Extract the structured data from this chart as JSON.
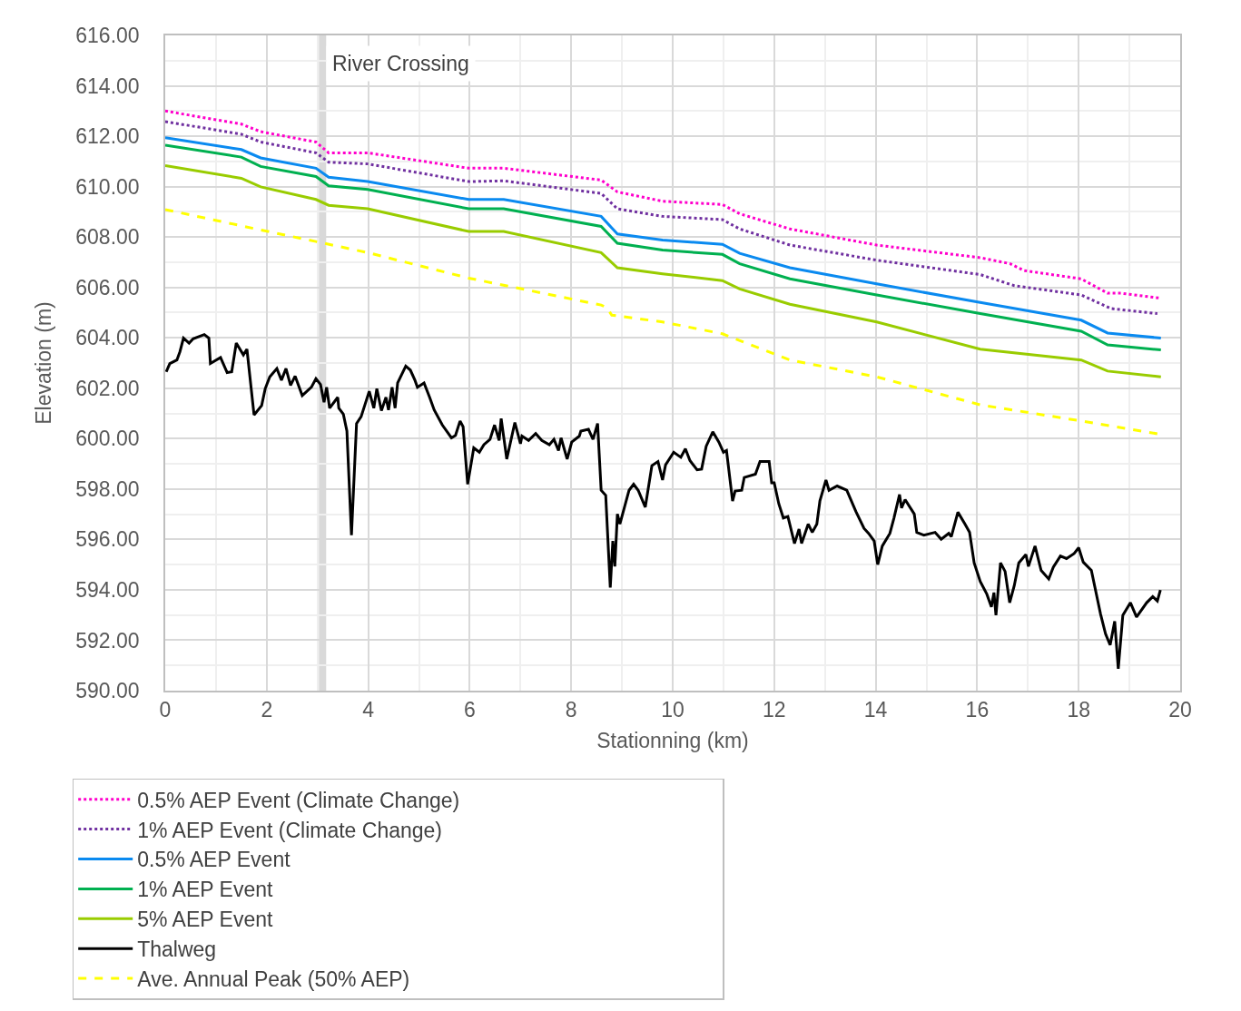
{
  "chart_data": {
    "type": "line",
    "xlabel": "Stationning (km)",
    "ylabel": "Elevation (m)",
    "xlim": [
      0,
      20
    ],
    "xticks": [
      0,
      2,
      4,
      6,
      8,
      10,
      12,
      14,
      16,
      18,
      20
    ],
    "ylim": [
      590,
      616
    ],
    "yticks": [
      {
        "value": 590,
        "label": "590.00"
      },
      {
        "value": 592,
        "label": "592.00"
      },
      {
        "value": 594,
        "label": "594.00"
      },
      {
        "value": 596,
        "label": "596.00"
      },
      {
        "value": 598,
        "label": "598.00"
      },
      {
        "value": 600,
        "label": "600.00"
      },
      {
        "value": 602,
        "label": "602.00"
      },
      {
        "value": 604,
        "label": "604.00"
      },
      {
        "value": 606,
        "label": "606.00"
      },
      {
        "value": 608,
        "label": "608.00"
      },
      {
        "value": 610,
        "label": "610.00"
      },
      {
        "value": 612,
        "label": "612.00"
      },
      {
        "value": 614,
        "label": "614.00"
      },
      {
        "value": 616,
        "label": "616.00"
      }
    ],
    "grid": true,
    "legend": "bottom",
    "ref_lines": [
      {
        "axis": "x",
        "value": 3.1,
        "label": "River Crossing",
        "color": "#d9d9d9"
      }
    ],
    "series": [
      {
        "name": "0.5% AEP Event (Climate Change)",
        "color": "#ff00cc",
        "line_style": "dotted",
        "x": [
          0,
          1.5,
          1.88,
          2.97,
          3.22,
          3.99,
          5.98,
          6.67,
          8.59,
          8.91,
          9.8,
          10.98,
          11.32,
          12.31,
          14.02,
          16.06,
          16.65,
          16.92,
          18.05,
          18.57,
          18.84,
          19.62
        ],
        "values": [
          613.0,
          612.48,
          612.18,
          611.77,
          611.34,
          611.34,
          610.73,
          610.73,
          610.26,
          609.79,
          609.42,
          609.29,
          608.92,
          608.32,
          607.68,
          607.18,
          606.94,
          606.67,
          606.34,
          605.77,
          605.77,
          605.57
        ]
      },
      {
        "name": "1% AEP Event (Climate Change)",
        "color": "#7030a0",
        "line_style": "dotted",
        "x": [
          0,
          1.5,
          1.88,
          2.97,
          3.22,
          3.99,
          5.98,
          6.67,
          8.59,
          8.91,
          9.8,
          10.98,
          11.32,
          12.31,
          14.02,
          16.06,
          16.73,
          18.05,
          18.64,
          19.55
        ],
        "values": [
          612.58,
          612.08,
          611.77,
          611.34,
          610.97,
          610.9,
          610.2,
          610.23,
          609.73,
          609.12,
          608.82,
          608.69,
          608.32,
          607.68,
          607.08,
          606.51,
          606.07,
          605.7,
          605.16,
          604.96
        ]
      },
      {
        "name": "0.5% AEP Event",
        "color": "#0a8af0",
        "line_style": "solid",
        "x": [
          0,
          1.5,
          1.88,
          2.97,
          3.22,
          3.99,
          5.98,
          6.67,
          8.59,
          8.91,
          9.8,
          10.98,
          11.32,
          12.31,
          14.02,
          16.06,
          18.05,
          18.57,
          19.62
        ],
        "values": [
          611.94,
          611.47,
          611.14,
          610.73,
          610.37,
          610.2,
          609.49,
          609.49,
          608.82,
          608.12,
          607.88,
          607.71,
          607.35,
          606.78,
          606.14,
          605.4,
          604.7,
          604.19,
          603.99
        ]
      },
      {
        "name": "1% AEP Event",
        "color": "#00b050",
        "line_style": "solid",
        "x": [
          0,
          1.5,
          1.88,
          2.97,
          3.22,
          3.99,
          5.98,
          6.67,
          8.59,
          8.91,
          9.8,
          10.98,
          11.32,
          12.31,
          14.02,
          16.06,
          18.05,
          18.57,
          19.62
        ],
        "values": [
          611.64,
          611.17,
          610.8,
          610.4,
          610.03,
          609.89,
          609.12,
          609.12,
          608.42,
          607.75,
          607.48,
          607.31,
          606.94,
          606.34,
          605.7,
          604.96,
          604.26,
          603.72,
          603.52
        ]
      },
      {
        "name": "5% AEP Event",
        "color": "#99cc00",
        "line_style": "solid",
        "x": [
          0,
          1.5,
          1.88,
          2.97,
          3.22,
          3.99,
          5.98,
          6.67,
          8.59,
          8.91,
          9.8,
          10.98,
          11.32,
          12.31,
          14.02,
          16.06,
          18.05,
          18.57,
          19.62
        ],
        "values": [
          610.83,
          610.33,
          609.99,
          609.49,
          609.26,
          609.12,
          608.22,
          608.22,
          607.38,
          606.78,
          606.54,
          606.27,
          605.94,
          605.33,
          604.63,
          603.55,
          603.12,
          602.68,
          602.45
        ]
      },
      {
        "name": "Thalweg",
        "color": "#000000",
        "line_style": "solid",
        "x": [
          0.02,
          0.09,
          0.23,
          0.29,
          0.36,
          0.47,
          0.55,
          0.77,
          0.86,
          0.89,
          1.09,
          1.22,
          1.31,
          1.4,
          1.54,
          1.61,
          1.75,
          1.9,
          1.97,
          2.06,
          2.2,
          2.29,
          2.38,
          2.47,
          2.56,
          2.7,
          2.88,
          2.97,
          3.06,
          3.13,
          3.18,
          3.24,
          3.4,
          3.42,
          3.51,
          3.58,
          3.67,
          3.77,
          3.86,
          4.02,
          4.11,
          4.17,
          4.26,
          4.35,
          4.4,
          4.47,
          4.53,
          4.58,
          4.74,
          4.83,
          4.92,
          4.97,
          5.1,
          5.21,
          5.3,
          5.46,
          5.64,
          5.72,
          5.81,
          5.87,
          5.96,
          6.08,
          6.19,
          6.28,
          6.4,
          6.49,
          6.58,
          6.62,
          6.73,
          6.89,
          7.0,
          7.03,
          7.16,
          7.3,
          7.42,
          7.57,
          7.66,
          7.75,
          7.8,
          7.92,
          8.01,
          8.16,
          8.19,
          8.34,
          8.43,
          8.52,
          8.59,
          8.68,
          8.77,
          8.82,
          8.86,
          8.91,
          8.96,
          9.14,
          9.23,
          9.32,
          9.46,
          9.59,
          9.71,
          9.8,
          9.86,
          10.02,
          10.16,
          10.25,
          10.34,
          10.48,
          10.57,
          10.66,
          10.79,
          10.91,
          11.0,
          11.06,
          11.18,
          11.23,
          11.36,
          11.41,
          11.63,
          11.72,
          11.9,
          11.95,
          12.0,
          12.09,
          12.18,
          12.27,
          12.4,
          12.49,
          12.54,
          12.67,
          12.75,
          12.84,
          12.9,
          13.02,
          13.08,
          13.24,
          13.43,
          13.61,
          13.77,
          13.86,
          13.97,
          14.04,
          14.13,
          14.28,
          14.36,
          14.47,
          14.51,
          14.58,
          14.76,
          14.81,
          14.95,
          15.17,
          15.29,
          15.44,
          15.49,
          15.62,
          15.76,
          15.85,
          15.94,
          16.06,
          16.19,
          16.28,
          16.33,
          16.37,
          16.46,
          16.55,
          16.64,
          16.73,
          16.82,
          16.96,
          17.01,
          17.14,
          17.26,
          17.41,
          17.5,
          17.64,
          17.76,
          17.91,
          18.0,
          18.09,
          18.25,
          18.43,
          18.53,
          18.62,
          18.71,
          18.78,
          18.87,
          19.02,
          19.14,
          19.34,
          19.46,
          19.55,
          19.61
        ],
        "values": [
          602.65,
          602.98,
          603.12,
          603.45,
          603.99,
          603.79,
          603.96,
          604.13,
          603.99,
          602.98,
          603.22,
          602.62,
          602.65,
          603.79,
          603.32,
          603.55,
          600.94,
          601.31,
          601.98,
          602.45,
          602.78,
          602.32,
          602.78,
          602.11,
          602.48,
          601.71,
          602.04,
          602.38,
          602.15,
          601.44,
          602.04,
          601.21,
          601.64,
          601.21,
          600.97,
          600.3,
          596.17,
          600.6,
          600.87,
          601.88,
          601.21,
          601.98,
          601.11,
          601.64,
          601.14,
          602.04,
          601.21,
          602.21,
          602.88,
          602.72,
          602.32,
          602.04,
          602.21,
          601.64,
          601.14,
          600.54,
          600.03,
          600.13,
          600.7,
          600.47,
          598.19,
          599.63,
          599.46,
          599.76,
          599.97,
          600.54,
          599.93,
          600.8,
          599.19,
          600.64,
          599.8,
          600.1,
          599.93,
          600.2,
          599.93,
          599.76,
          599.97,
          599.53,
          600.03,
          599.19,
          599.86,
          600.1,
          600.3,
          600.37,
          599.97,
          600.6,
          597.95,
          597.75,
          594.09,
          595.94,
          594.93,
          597.01,
          596.61,
          597.95,
          598.19,
          597.95,
          597.28,
          598.93,
          599.09,
          598.36,
          598.96,
          599.46,
          599.26,
          599.6,
          599.13,
          598.76,
          598.79,
          599.7,
          600.27,
          599.86,
          599.46,
          599.53,
          597.52,
          597.92,
          597.95,
          598.46,
          598.59,
          599.09,
          599.09,
          598.25,
          598.25,
          597.42,
          596.85,
          596.91,
          595.84,
          596.41,
          595.84,
          596.61,
          596.28,
          596.61,
          597.52,
          598.36,
          597.95,
          598.12,
          597.95,
          597.11,
          596.44,
          596.24,
          595.94,
          595.0,
          595.74,
          596.24,
          596.85,
          597.78,
          597.25,
          597.58,
          597.01,
          596.28,
          596.17,
          596.28,
          596.01,
          596.24,
          596.11,
          597.08,
          596.61,
          596.28,
          595.07,
          594.33,
          593.83,
          593.32,
          593.89,
          592.99,
          595.07,
          594.73,
          593.49,
          594.16,
          595.07,
          595.4,
          594.93,
          595.74,
          594.77,
          594.43,
          594.9,
          595.34,
          595.24,
          595.44,
          595.67,
          595.1,
          594.77,
          593.05,
          592.25,
          591.81,
          592.75,
          590.87,
          592.99,
          593.49,
          592.92,
          593.49,
          593.73,
          593.56,
          593.99
        ]
      },
      {
        "name": "Ave. Annual Peak (50% AEP)",
        "color": "#ffff00",
        "line_style": "dashed",
        "x": [
          0,
          1.88,
          2.97,
          3.99,
          5.98,
          8.59,
          8.7,
          8.8,
          9.8,
          10.98,
          12.31,
          14.02,
          16.06,
          18.05,
          19.62
        ],
        "values": [
          609.09,
          608.28,
          607.82,
          607.38,
          606.37,
          605.3,
          605.2,
          604.9,
          604.63,
          604.16,
          603.12,
          602.45,
          601.34,
          600.7,
          600.17
        ]
      }
    ]
  }
}
